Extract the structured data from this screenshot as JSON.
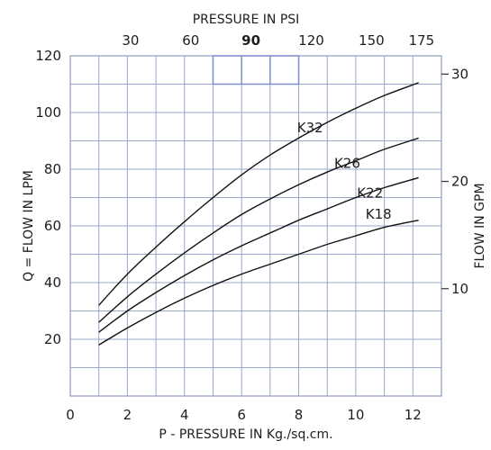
{
  "chart_data": {
    "type": "line",
    "title": "",
    "xlabel": "P - PRESSURE IN Kg./sq.cm.",
    "ylabel": "Q = FLOW IN LPM",
    "x2label": "PRESSURE IN PSI",
    "y2label": "FLOW IN GPM",
    "xlim": [
      0,
      13
    ],
    "ylim": [
      0,
      120
    ],
    "x_ticks": [
      0,
      2,
      4,
      6,
      8,
      10,
      12
    ],
    "y_ticks": [
      20,
      40,
      60,
      80,
      100,
      120
    ],
    "x2_ticks": [
      {
        "label": "30",
        "at_kg": 2.11
      },
      {
        "label": "60",
        "at_kg": 4.22
      },
      {
        "label": "90",
        "at_kg": 6.33,
        "bold": true
      },
      {
        "label": "120",
        "at_kg": 8.44
      },
      {
        "label": "150",
        "at_kg": 10.55
      },
      {
        "label": "175",
        "at_kg": 12.3
      }
    ],
    "y2_ticks": [
      {
        "label": "10",
        "at_lpm": 37.85
      },
      {
        "label": "20",
        "at_lpm": 75.7
      },
      {
        "label": "30",
        "at_lpm": 113.55
      }
    ],
    "grid": true,
    "series": [
      {
        "name": "K32",
        "x": [
          1,
          2,
          3,
          4,
          5,
          6,
          7,
          8,
          9,
          10,
          11,
          12.2
        ],
        "y": [
          32,
          43,
          52.5,
          61.5,
          70,
          78,
          85,
          91,
          96.5,
          101.5,
          106,
          110.5
        ],
        "label_at": [
          8.4,
          93
        ]
      },
      {
        "name": "K26",
        "x": [
          1,
          2,
          3,
          4,
          5,
          6,
          7,
          8,
          9,
          10,
          11,
          12.2
        ],
        "y": [
          26,
          35,
          43,
          50.5,
          57.5,
          64,
          69.5,
          74.5,
          79,
          83,
          87,
          91
        ],
        "label_at": [
          9.7,
          80.5
        ]
      },
      {
        "name": "K22",
        "x": [
          1,
          2,
          3,
          4,
          5,
          6,
          7,
          8,
          9,
          10,
          11,
          12.2
        ],
        "y": [
          22.5,
          30,
          36.5,
          42.5,
          48,
          53,
          57.5,
          62,
          66,
          70,
          73.5,
          77
        ],
        "label_at": [
          10.5,
          70
        ]
      },
      {
        "name": "K18",
        "x": [
          1,
          2,
          3,
          4,
          5,
          6,
          7,
          8,
          9,
          10,
          11,
          12.2
        ],
        "y": [
          18,
          24,
          29.5,
          34.5,
          39,
          43,
          46.5,
          50,
          53.5,
          56.5,
          59.5,
          62
        ],
        "label_at": [
          10.8,
          62.5
        ]
      }
    ],
    "colors": {
      "grid": "#9aa7c8",
      "curves": "#111111",
      "highlight": "#7e90cf"
    }
  }
}
